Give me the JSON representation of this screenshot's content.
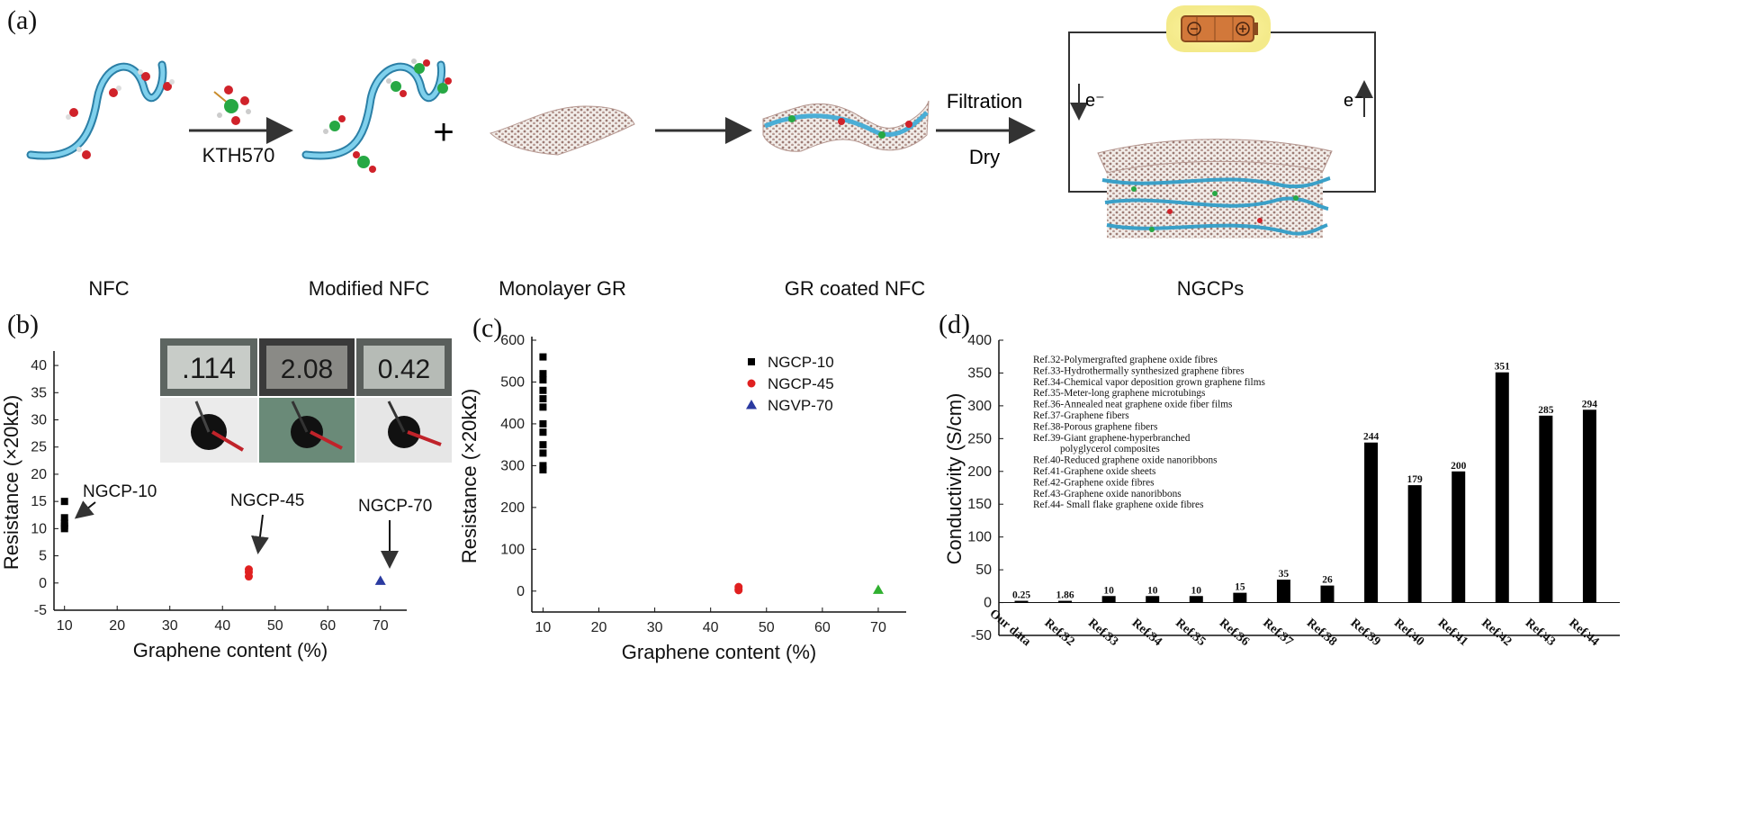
{
  "panel_a": {
    "label": "(a)",
    "step_labels": [
      "NFC",
      "Modified NFC",
      "Monolayer GR",
      "GR coated NFC",
      "NGCPs"
    ],
    "reagent": "KTH570",
    "plus": "+",
    "process_top": "Filtration",
    "process_bottom": "Dry",
    "electron_left": "e⁻",
    "electron_right": "e⁻"
  },
  "panel_b": {
    "label": "(b)",
    "meter_readings": [
      ".114",
      "2.08",
      "0.42"
    ],
    "annotations": [
      "NGCP-10",
      "NGCP-45",
      "NGCP-70"
    ]
  },
  "panel_c": {
    "label": "(c)"
  },
  "panel_d": {
    "label": "(d)"
  },
  "chart_data": [
    {
      "type": "scatter",
      "title": "",
      "xlabel": "Graphene content (%)",
      "ylabel": "Resistance (×20kΩ)",
      "xlim": [
        8,
        75
      ],
      "ylim": [
        -5,
        42
      ],
      "xticks": [
        10,
        20,
        30,
        40,
        50,
        60,
        70
      ],
      "yticks": [
        -5,
        0,
        5,
        10,
        15,
        20,
        25,
        30,
        35,
        40
      ],
      "series": [
        {
          "x": [
            10,
            10,
            10,
            10,
            10
          ],
          "y": [
            15,
            12,
            11,
            10.5,
            10
          ],
          "color": "#000000",
          "marker": "square"
        },
        {
          "x": [
            45,
            45,
            45
          ],
          "y": [
            2.5,
            2.0,
            1.2
          ],
          "color": "#e02020",
          "marker": "circle"
        },
        {
          "x": [
            70
          ],
          "y": [
            0.4
          ],
          "color": "#2a3aa0",
          "marker": "triangle"
        }
      ]
    },
    {
      "type": "scatter",
      "title": "",
      "xlabel": "Graphene content (%)",
      "ylabel": "Resistance (×20kΩ)",
      "xlim": [
        8,
        75
      ],
      "ylim": [
        -50,
        600
      ],
      "xticks": [
        10,
        20,
        30,
        40,
        50,
        60,
        70
      ],
      "yticks": [
        0,
        100,
        200,
        300,
        400,
        500,
        600
      ],
      "legend_position": "top-right",
      "series": [
        {
          "name": "NGCP-10",
          "x": [
            10,
            10,
            10,
            10,
            10,
            10,
            10,
            10,
            10,
            10,
            10,
            10
          ],
          "y": [
            560,
            520,
            505,
            480,
            460,
            440,
            400,
            380,
            350,
            330,
            300,
            290
          ],
          "color": "#000000",
          "marker": "square"
        },
        {
          "name": "NGCP-45",
          "x": [
            45,
            45,
            45
          ],
          "y": [
            10,
            5,
            2
          ],
          "color": "#e02020",
          "marker": "circle"
        },
        {
          "name": "NGVP-70",
          "x": [
            70
          ],
          "y": [
            3
          ],
          "color": "#30b030",
          "marker": "triangle",
          "legend_color": "#2a3aa0"
        }
      ]
    },
    {
      "type": "bar",
      "title": "",
      "xlabel": "",
      "ylabel": "Conductivity (S/cm)",
      "ylim": [
        -50,
        400
      ],
      "yticks": [
        -50,
        0,
        50,
        100,
        150,
        200,
        250,
        300,
        350,
        400
      ],
      "categories": [
        "Our data",
        "Ref.32",
        "Ref.33",
        "Ref.34",
        "Ref.35",
        "Ref.36",
        "Ref.37",
        "Ref.38",
        "Ref.39",
        "Ref.40",
        "Ref.41",
        "Ref.42",
        "Ref.43",
        "Ref.44"
      ],
      "values": [
        0.25,
        1.86,
        10,
        10,
        10,
        15,
        35,
        26,
        244,
        179,
        200,
        351,
        285,
        294
      ],
      "value_labels": [
        "0.25",
        "1.86",
        "10",
        "10",
        "10",
        "15",
        "35",
        "26",
        "244",
        "179",
        "200",
        "351",
        "285",
        "294"
      ],
      "color": "#000000",
      "references": [
        "Ref.32-Polymergrafted graphene oxide fibres",
        "Ref.33-Hydrothermally synthesized graphene fibres",
        "Ref.34-Chemical vapor deposition grown graphene films",
        "Ref.35-Meter-long graphene microtubings",
        "Ref.36-Annealed neat graphene oxide fiber films",
        "Ref.37-Graphene fibers",
        "Ref.38-Porous graphene fibers",
        "Ref.39-Giant graphene-hyperbranched",
        "polyglycerol composites",
        "Ref.40-Reduced graphene oxide nanoribbons",
        "Ref.41-Graphene oxide sheets",
        "Ref.42-Graphene oxide fibres",
        "Ref.43-Graphene oxide nanoribbons",
        "Ref.44- Small flake graphene oxide fibres"
      ]
    }
  ]
}
